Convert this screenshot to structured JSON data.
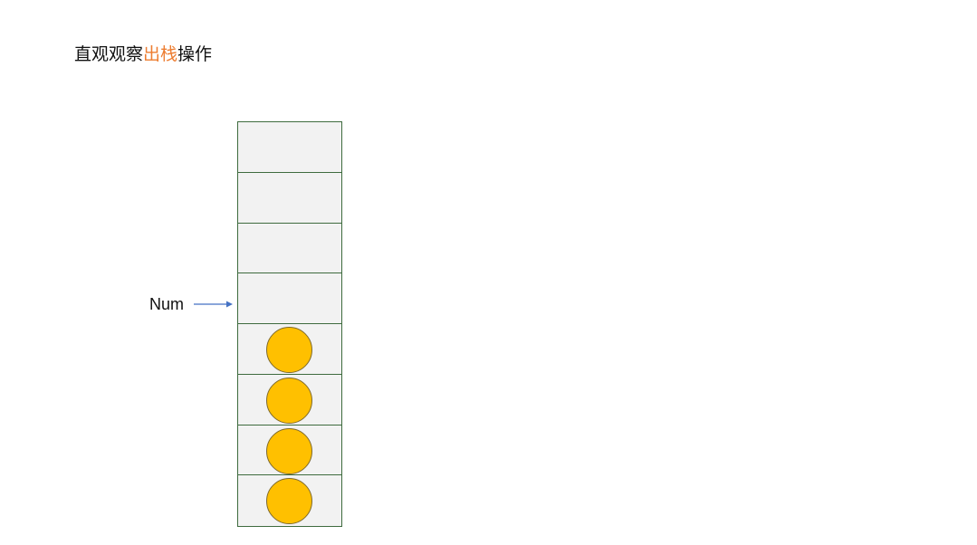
{
  "title": {
    "prefix": "直观观察",
    "highlight": "出栈",
    "suffix": "操作",
    "highlight_color": "#ED7D31"
  },
  "pointer": {
    "label": "Num",
    "arrow_color": "#4472C4"
  },
  "stack": {
    "slot_count": 8,
    "slot_fill": "#F2F2F2",
    "slot_border": "#3E6B3E",
    "ball_color": "#FFC000",
    "filled_slots": [
      false,
      false,
      false,
      false,
      true,
      true,
      true,
      true
    ]
  }
}
